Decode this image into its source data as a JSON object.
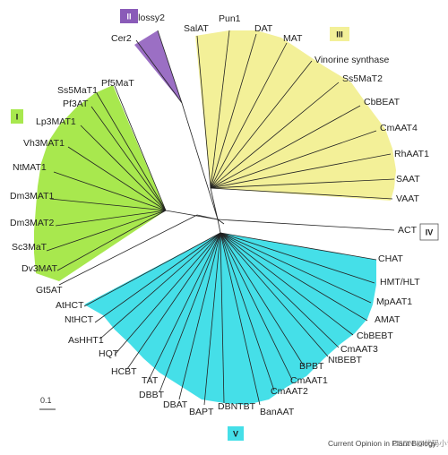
{
  "clades": [
    {
      "id": "I",
      "label": "I",
      "fill": "#a8e84e",
      "box_fill": "#a8e84e",
      "box_text": "#1a1a1a"
    },
    {
      "id": "II",
      "label": "II",
      "fill": "#9b6fc4",
      "box_fill": "#8a5bb8",
      "box_text": "#ffffff"
    },
    {
      "id": "III",
      "label": "III",
      "fill": "#f3f098",
      "box_fill": "#f3f098",
      "box_text": "#1a1a1a"
    },
    {
      "id": "IV",
      "label": "IV",
      "fill": "none",
      "box_fill": "#ffffff",
      "box_text": "#1a1a1a"
    },
    {
      "id": "V",
      "label": "V",
      "fill": "#45dfe8",
      "box_fill": "#45dfe8",
      "box_text": "#1a1a1a"
    }
  ],
  "leaves": {
    "clade_I": [
      "Pf5MaT",
      "Ss5MaT1",
      "Pf3AT",
      "Lp3MAT1",
      "Vh3MAT1",
      "NtMAT1",
      "Dm3MAT1",
      "Dm3MAT2",
      "Sc3MaT",
      "Dv3MAT"
    ],
    "clade_II": [
      "Cer2",
      "Glossy2"
    ],
    "clade_III": [
      "SalAT",
      "Pun1",
      "DAT",
      "MAT",
      "Vinorine synthase",
      "Ss5MaT2",
      "CbBEAT",
      "CmAAT4",
      "RhAAT1",
      "SAAT",
      "VAAT"
    ],
    "clade_IV": [
      "ACT"
    ],
    "clade_V": [
      "CHAT",
      "HMT/HLT",
      "MpAAT1",
      "AMAT",
      "CbBEBT",
      "CmAAT3",
      "NtBEBT",
      "BPBT",
      "CmAAT1",
      "CmAAT2",
      "BanAAT",
      "DBNTBT",
      "BAPT",
      "DBAT",
      "DBBT",
      "TAT",
      "HCBT",
      "HQT",
      "AsHHT1",
      "NtHCT",
      "AtHCT"
    ],
    "outgroup": [
      "Gt5AT"
    ]
  },
  "scale_bar": "0.1",
  "credit": "Current Opinion in Plant Biology",
  "watermark": "CSDN @代码小试"
}
